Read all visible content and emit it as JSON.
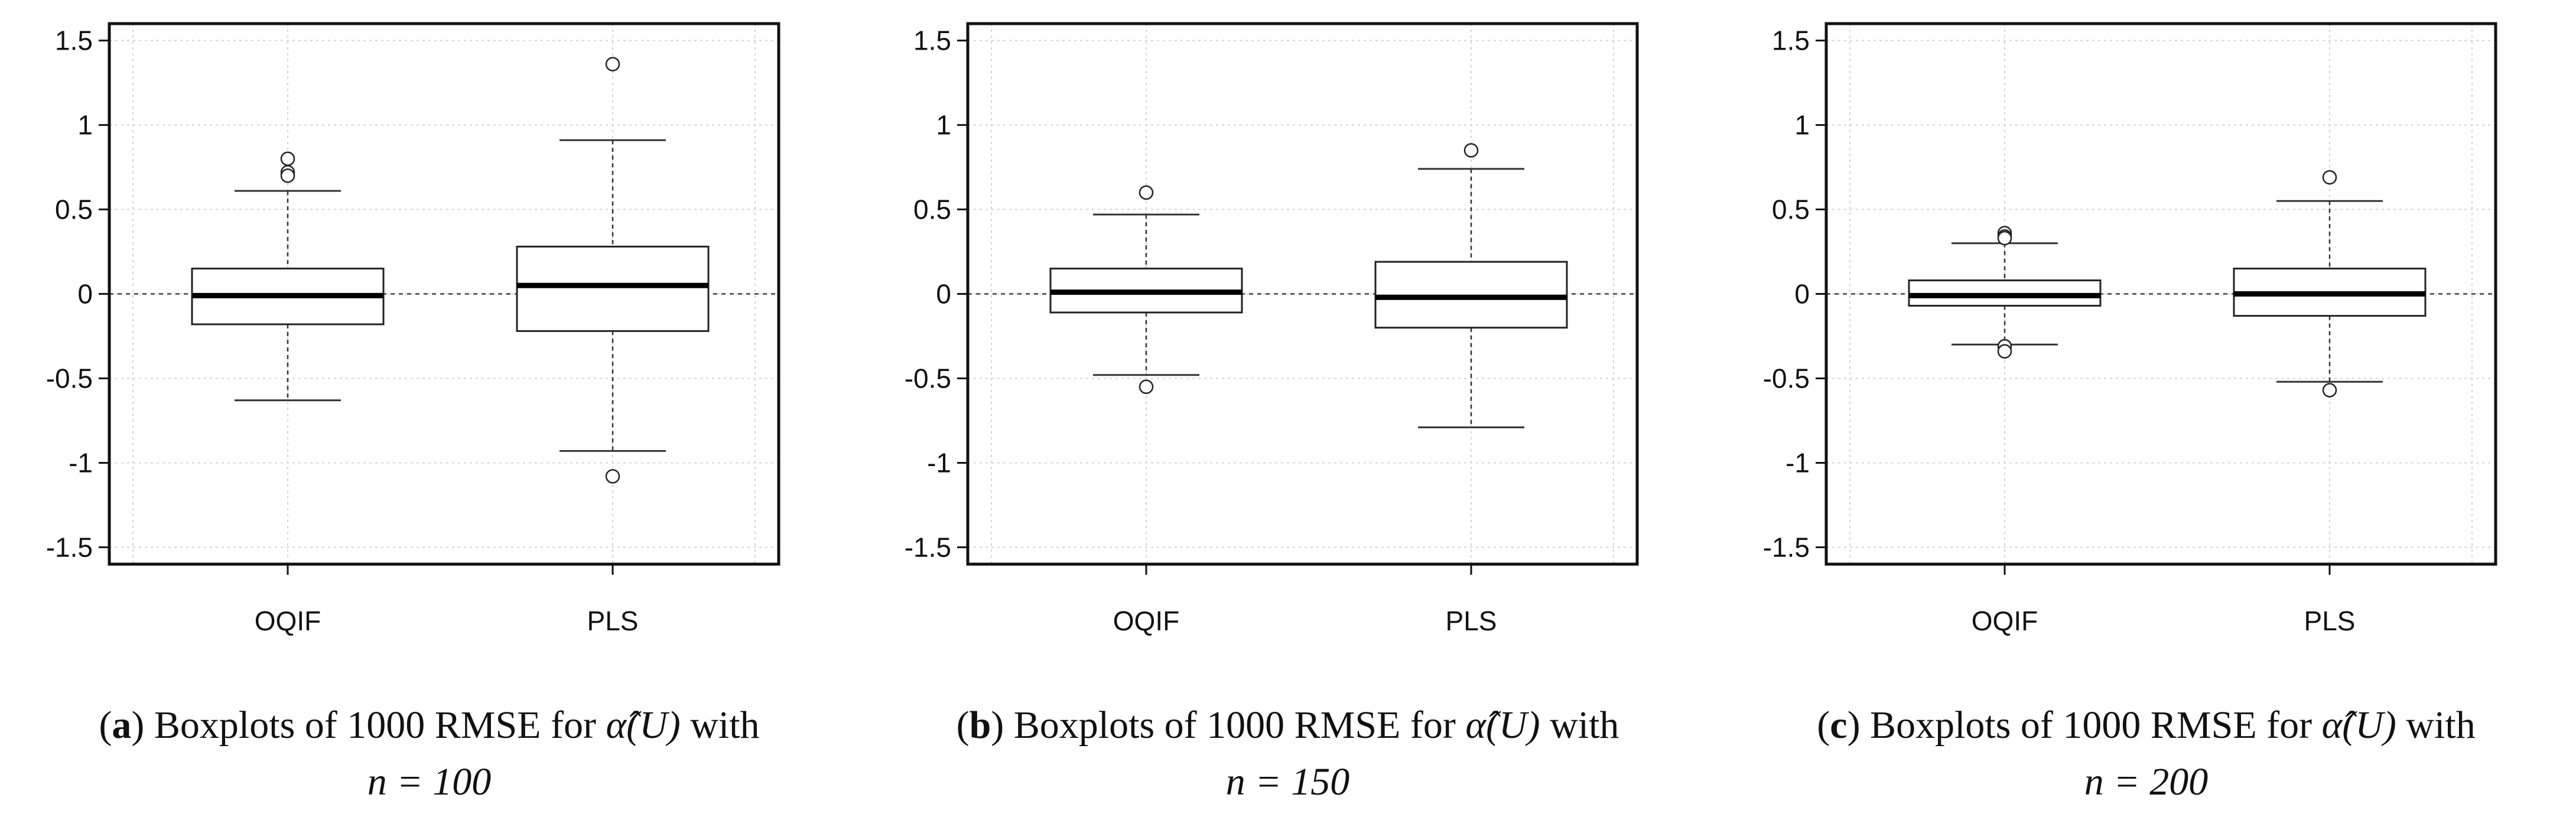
{
  "chart_data": [
    {
      "type": "box",
      "panel_label": "a",
      "caption": {
        "prefix": "Boxplots of 1000 RMSE for ",
        "estimator": "α̂(U)",
        "suffix": " with",
        "line2": "n = 100"
      },
      "categories": [
        "OQIF",
        "PLS"
      ],
      "ylim": [
        -1.6,
        1.6
      ],
      "yticks": [
        -1.5,
        -1,
        -0.5,
        0,
        0.5,
        1,
        1.5
      ],
      "ytick_labels": [
        "-1.5",
        "-1",
        "-0.5",
        "0",
        "0.5",
        "1",
        "1.5"
      ],
      "reference_line": 0,
      "grid": true,
      "boxes": [
        {
          "name": "OQIF",
          "whisker_low": -0.63,
          "q1": -0.18,
          "median": -0.01,
          "q3": 0.15,
          "whisker_high": 0.61,
          "outliers": [
            0.8,
            0.72,
            0.7
          ]
        },
        {
          "name": "PLS",
          "whisker_low": -0.93,
          "q1": -0.22,
          "median": 0.05,
          "q3": 0.28,
          "whisker_high": 0.91,
          "outliers": [
            1.36,
            -1.08
          ]
        }
      ]
    },
    {
      "type": "box",
      "panel_label": "b",
      "caption": {
        "prefix": "Boxplots of 1000 RMSE for ",
        "estimator": "α̂(U)",
        "suffix": " with",
        "line2": "n = 150"
      },
      "categories": [
        "OQIF",
        "PLS"
      ],
      "ylim": [
        -1.6,
        1.6
      ],
      "yticks": [
        -1.5,
        -1,
        -0.5,
        0,
        0.5,
        1,
        1.5
      ],
      "ytick_labels": [
        "-1.5",
        "-1",
        "-0.5",
        "0",
        "0.5",
        "1",
        "1.5"
      ],
      "reference_line": 0,
      "grid": true,
      "boxes": [
        {
          "name": "OQIF",
          "whisker_low": -0.48,
          "q1": -0.11,
          "median": 0.01,
          "q3": 0.15,
          "whisker_high": 0.47,
          "outliers": [
            0.6,
            -0.55
          ]
        },
        {
          "name": "PLS",
          "whisker_low": -0.79,
          "q1": -0.2,
          "median": -0.02,
          "q3": 0.19,
          "whisker_high": 0.74,
          "outliers": [
            0.85
          ]
        }
      ]
    },
    {
      "type": "box",
      "panel_label": "c",
      "caption": {
        "prefix": "Boxplots of 1000 RMSE for ",
        "estimator": "α̂(U)",
        "suffix": " with",
        "line2": "n = 200"
      },
      "categories": [
        "OQIF",
        "PLS"
      ],
      "ylim": [
        -1.6,
        1.6
      ],
      "yticks": [
        -1.5,
        -1,
        -0.5,
        0,
        0.5,
        1,
        1.5
      ],
      "ytick_labels": [
        "-1.5",
        "-1",
        "-0.5",
        "0",
        "0.5",
        "1",
        "1.5"
      ],
      "reference_line": 0,
      "grid": true,
      "boxes": [
        {
          "name": "OQIF",
          "whisker_low": -0.3,
          "q1": -0.07,
          "median": -0.01,
          "q3": 0.08,
          "whisker_high": 0.3,
          "outliers": [
            0.36,
            0.34,
            0.33,
            -0.31,
            -0.34
          ]
        },
        {
          "name": "PLS",
          "whisker_low": -0.52,
          "q1": -0.13,
          "median": 0.0,
          "q3": 0.15,
          "whisker_high": 0.55,
          "outliers": [
            0.69,
            -0.57
          ]
        }
      ]
    }
  ]
}
